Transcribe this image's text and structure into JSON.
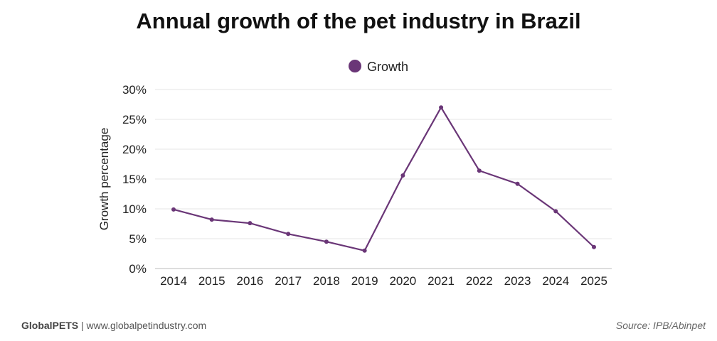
{
  "chart_data": {
    "type": "line",
    "title": "Annual growth of the pet industry in Brazil",
    "xlabel": "",
    "ylabel": "Growth percentage",
    "ylim": [
      0,
      30
    ],
    "yticks": [
      "0%",
      "5%",
      "10%",
      "15%",
      "20%",
      "25%",
      "30%"
    ],
    "grid": true,
    "legend_position": "top-center",
    "categories": [
      "2014",
      "2015",
      "2016",
      "2017",
      "2018",
      "2019",
      "2020",
      "2021",
      "2022",
      "2023",
      "2024",
      "2025"
    ],
    "series": [
      {
        "name": "Growth",
        "color": "#6a3677",
        "values": [
          9.9,
          8.2,
          7.6,
          5.8,
          4.5,
          3.0,
          15.6,
          27.0,
          16.4,
          14.2,
          9.6,
          3.6
        ]
      }
    ]
  },
  "footer": {
    "brand": "GlobalPETS",
    "separator": "|",
    "website": "www.globalpetindustry.com",
    "source": "Source: IPB/Abinpet"
  }
}
